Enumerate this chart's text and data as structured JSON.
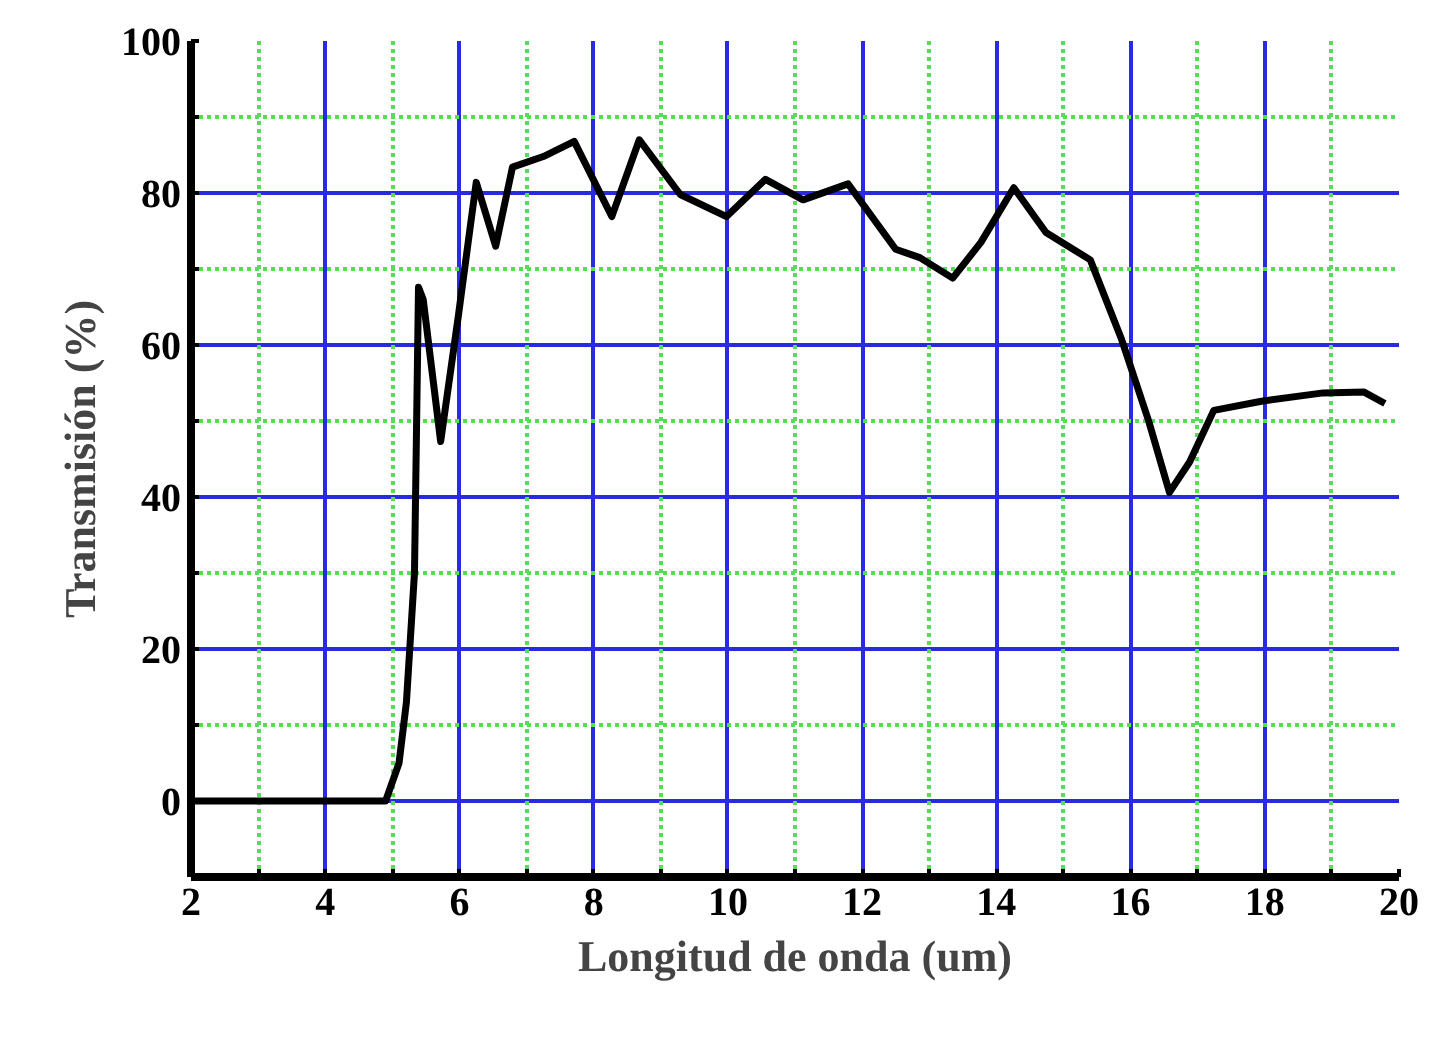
{
  "chart_data": {
    "type": "line",
    "xlabel": "Longitud de onda (um)",
    "ylabel": "Transmisión (%)",
    "xlim": [
      2,
      20
    ],
    "ylim": [
      -10,
      100
    ],
    "xticks": [
      2,
      {
        "value": 3,
        "label": null
      },
      4,
      {
        "value": 5,
        "label": null
      },
      6,
      {
        "value": 7,
        "label": null
      },
      8,
      {
        "value": 9,
        "label": null
      },
      10,
      {
        "value": 11,
        "label": null
      },
      12,
      {
        "value": 13,
        "label": null
      },
      14,
      {
        "value": 15,
        "label": null
      },
      16,
      {
        "value": 17,
        "label": null
      },
      18,
      {
        "value": 19,
        "label": null
      },
      20
    ],
    "yticks": [
      0,
      {
        "value": 10,
        "label": null
      },
      20,
      {
        "value": 30,
        "label": null
      },
      40,
      {
        "value": 50,
        "label": null
      },
      60,
      {
        "value": 70,
        "label": null
      },
      80,
      {
        "value": 90,
        "label": null
      },
      100
    ],
    "grid": true,
    "marker": "none",
    "line_style": "solid",
    "series": [
      {
        "color": "#000000",
        "x": [
          2,
          3,
          4,
          4.9,
          5.1,
          5.21,
          5.33,
          5.36,
          5.39,
          5.46,
          5.72,
          5.98,
          6.13,
          6.25,
          6.54,
          6.79,
          7.25,
          7.71,
          8.27,
          8.68,
          9.29,
          9.98,
          10.56,
          11.12,
          11.79,
          12.5,
          12.86,
          13.35,
          13.77,
          14.26,
          14.74,
          15.4,
          15.86,
          16.27,
          16.58,
          16.88,
          17.24,
          17.95,
          18.87,
          19.48,
          19.79
        ],
        "values": [
          0,
          0,
          0,
          0,
          5,
          13,
          30,
          48.7,
          67.6,
          66,
          47.3,
          63.6,
          73.5,
          81.4,
          73,
          83.4,
          84.8,
          86.8,
          76.9,
          87,
          79.8,
          76.9,
          81.8,
          79.1,
          81.2,
          72.6,
          71.5,
          68.8,
          73.5,
          80.7,
          74.8,
          71.2,
          60.9,
          50,
          40.6,
          44.6,
          51.4,
          52.6,
          53.7,
          53.8,
          52.3
        ]
      }
    ]
  }
}
